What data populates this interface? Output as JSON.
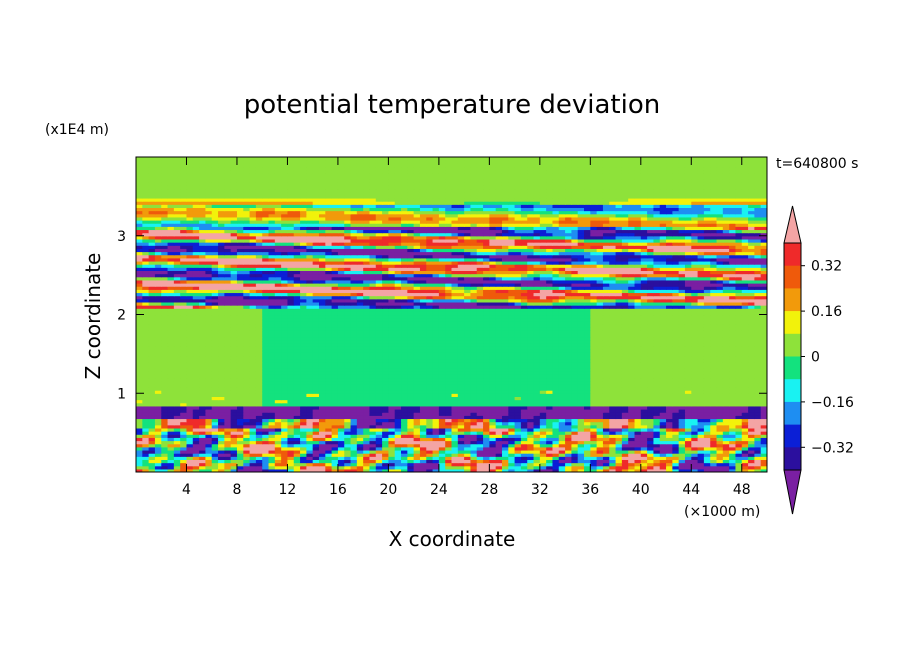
{
  "chart_data": {
    "type": "heatmap",
    "title": "potential temperature deviation",
    "xlabel": "X coordinate",
    "ylabel": "Z coordinate",
    "x_unit": "(×1000 m)",
    "y_unit": "(x1E4 m)",
    "time_label": "t=640800 s",
    "xlim": [
      0,
      50
    ],
    "ylim": [
      0,
      4
    ],
    "x_ticks": [
      4,
      8,
      12,
      16,
      20,
      24,
      28,
      32,
      36,
      40,
      44,
      48
    ],
    "y_ticks": [
      1,
      2,
      3
    ],
    "colorbar": {
      "levels": [
        -0.4,
        -0.32,
        -0.24,
        -0.16,
        -0.08,
        0,
        0.08,
        0.16,
        0.24,
        0.32,
        0.4
      ],
      "tick_labels": [
        "0.32",
        "0.16",
        "0",
        "−0.16",
        "−0.32"
      ],
      "tick_values": [
        0.32,
        0.16,
        0,
        -0.16,
        -0.32
      ],
      "colors": [
        "#7a1fa2",
        "#2b0f9e",
        "#0b1fd6",
        "#1e8ef2",
        "#19f2f2",
        "#13e27e",
        "#8ee23a",
        "#f2f20b",
        "#f29a0b",
        "#ef5a0b",
        "#ef2a2a",
        "#f4a4a4"
      ]
    },
    "field_bands": [
      {
        "z_range": [
          3.45,
          4.0
        ],
        "value": 0.04,
        "description": "mostly near zero"
      },
      {
        "z_range": [
          3.0,
          3.4
        ],
        "value": 0.0,
        "description": "layered positive/negative deviations"
      },
      {
        "z_range": [
          2.1,
          3.0
        ],
        "value": 0.0,
        "description": "strong alternating layers"
      },
      {
        "z_range": [
          0.85,
          2.1
        ],
        "value": 0.04,
        "description": "near zero"
      },
      {
        "z_range": [
          0.0,
          0.85
        ],
        "value": 0.0,
        "description": "turbulent boundary layer"
      }
    ]
  }
}
